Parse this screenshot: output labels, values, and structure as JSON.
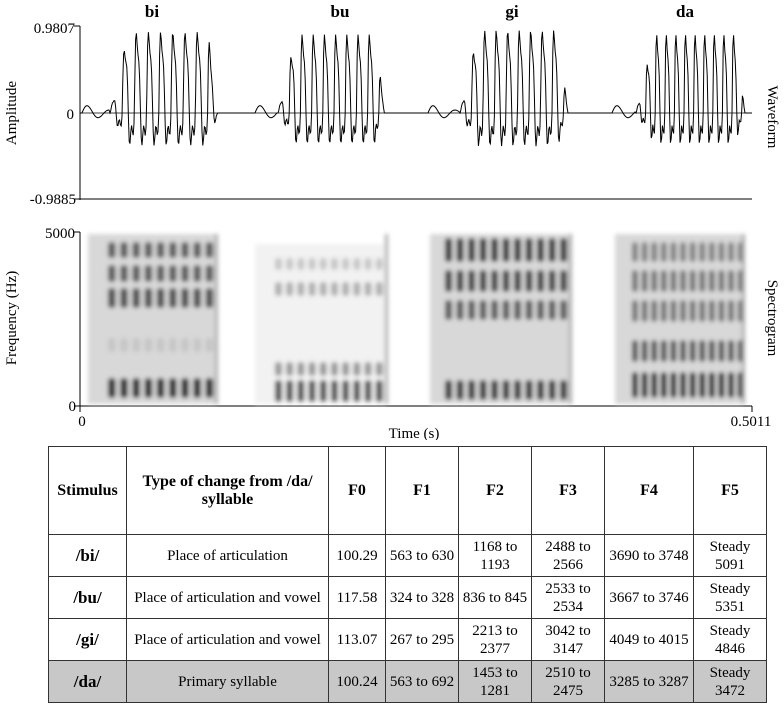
{
  "chart_data": [
    {
      "type": "waveform",
      "syllable_labels": [
        "bi",
        "bu",
        "gi",
        "da"
      ],
      "ylabel": "Amplitude",
      "panel_label": "Waveform",
      "y_ticks": [
        "0.9807",
        "0",
        "-0.9885"
      ],
      "ylim": [
        -0.9885,
        0.9807
      ],
      "xlim": [
        0,
        0.5011
      ]
    },
    {
      "type": "heatmap",
      "ylabel": "Frequency (Hz)",
      "panel_label": "Spectrogram",
      "y_ticks": [
        "5000",
        "0"
      ],
      "ylim": [
        0,
        5000
      ],
      "x_ticks": [
        "0",
        "0.5011"
      ],
      "xlabel": "Time (s)",
      "xlim": [
        0,
        0.5011
      ]
    }
  ],
  "table": {
    "headers": [
      "Stimulus",
      "Type of change from /da/ syllable",
      "F0",
      "F1",
      "F2",
      "F3",
      "F4",
      "F5"
    ],
    "rows": [
      [
        "/bi/",
        "Place of articulation",
        "100.29",
        "563 to 630",
        "1168 to 1193",
        "2488 to 2566",
        "3690 to 3748",
        "Steady 5091"
      ],
      [
        "/bu/",
        "Place of articulation and vowel",
        "117.58",
        "324 to 328",
        "836 to 845",
        "2533 to 2534",
        "3667 to 3746",
        "Steady 5351"
      ],
      [
        "/gi/",
        "Place of articulation and vowel",
        "113.07",
        "267 to 295",
        "2213 to 2377",
        "3042 to 3147",
        "4049 to 4015",
        "Steady 4846"
      ],
      [
        "/da/",
        "Primary syllable",
        "100.24",
        "563 to 692",
        "1453 to 1281",
        "2510 to 2475",
        "3285 to 3287",
        "Steady 3472"
      ]
    ]
  },
  "colors": {
    "highlight_row": "#c8c8c8",
    "ink": "#000000"
  }
}
